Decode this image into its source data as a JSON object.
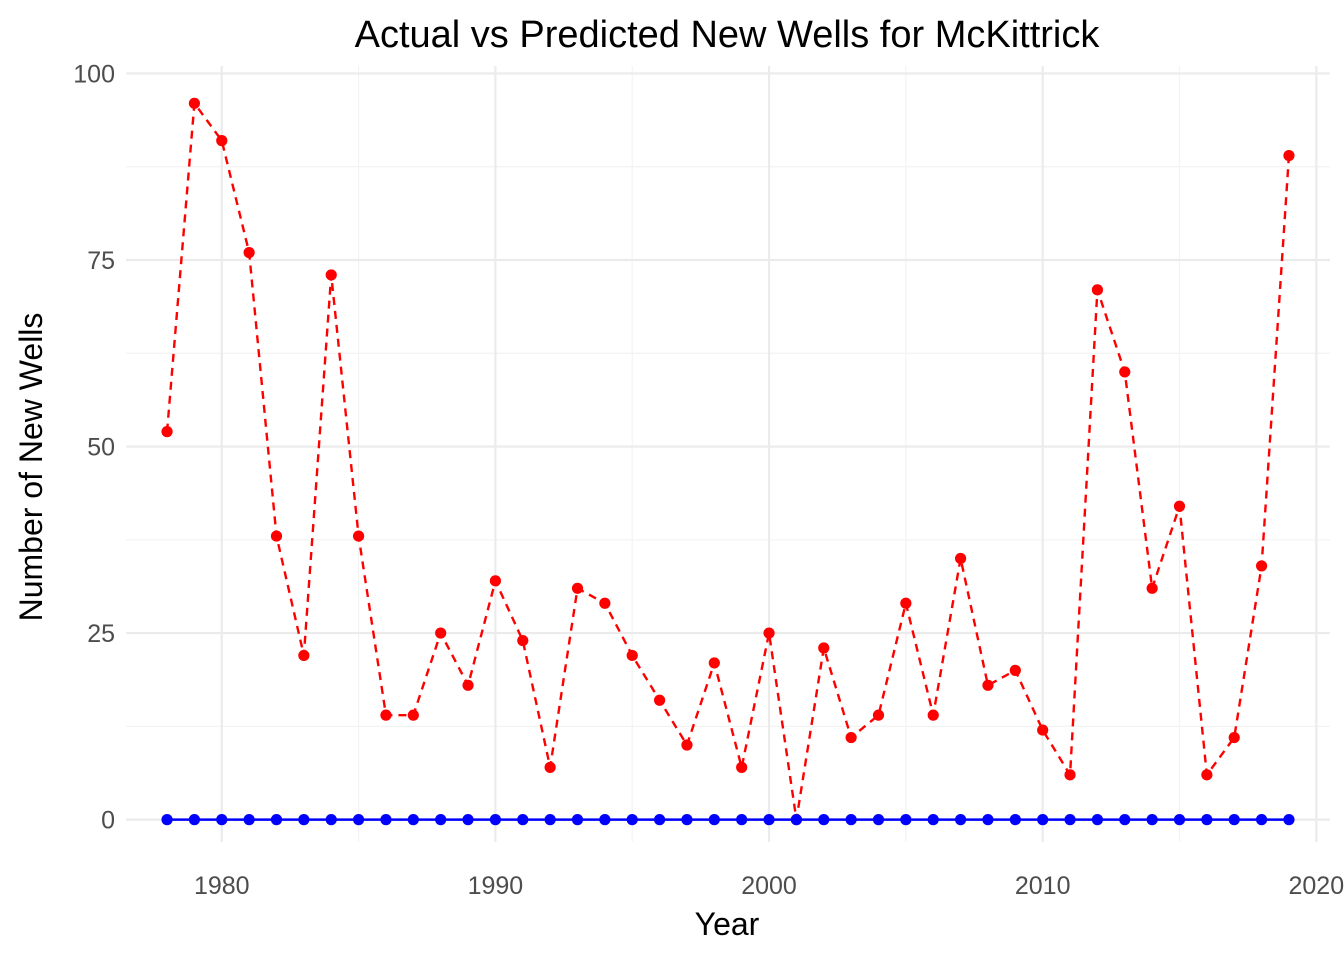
{
  "chart_data": {
    "type": "line",
    "title": "Actual vs Predicted New Wells for McKittrick",
    "xlabel": "Year",
    "ylabel": "Number of New Wells",
    "xlim": [
      1976.5,
      2020.5
    ],
    "ylim": [
      -3,
      101
    ],
    "x_ticks": [
      1980,
      1990,
      2000,
      2010,
      2020
    ],
    "y_ticks": [
      0,
      25,
      50,
      75,
      100
    ],
    "grid": true,
    "x": [
      1978,
      1979,
      1980,
      1981,
      1982,
      1983,
      1984,
      1985,
      1986,
      1987,
      1988,
      1989,
      1990,
      1991,
      1992,
      1993,
      1994,
      1995,
      1996,
      1997,
      1998,
      1999,
      2000,
      2001,
      2002,
      2003,
      2004,
      2005,
      2006,
      2007,
      2008,
      2009,
      2010,
      2011,
      2012,
      2013,
      2014,
      2015,
      2016,
      2017,
      2018,
      2019
    ],
    "series": [
      {
        "color": "#ff0000",
        "line_style": "dashed",
        "values": [
          52,
          96,
          91,
          76,
          38,
          22,
          73,
          38,
          14,
          14,
          25,
          18,
          32,
          24,
          7,
          31,
          29,
          22,
          16,
          10,
          21,
          7,
          25,
          0,
          23,
          11,
          14,
          29,
          14,
          35,
          18,
          20,
          12,
          6,
          71,
          60,
          31,
          42,
          6,
          11,
          34,
          89
        ]
      },
      {
        "color": "#0000ff",
        "line_style": "solid",
        "values": [
          0,
          0,
          0,
          0,
          0,
          0,
          0,
          0,
          0,
          0,
          0,
          0,
          0,
          0,
          0,
          0,
          0,
          0,
          0,
          0,
          0,
          0,
          0,
          0,
          0,
          0,
          0,
          0,
          0,
          0,
          0,
          0,
          0,
          0,
          0,
          0,
          0,
          0,
          0,
          0,
          0,
          0
        ]
      }
    ]
  }
}
